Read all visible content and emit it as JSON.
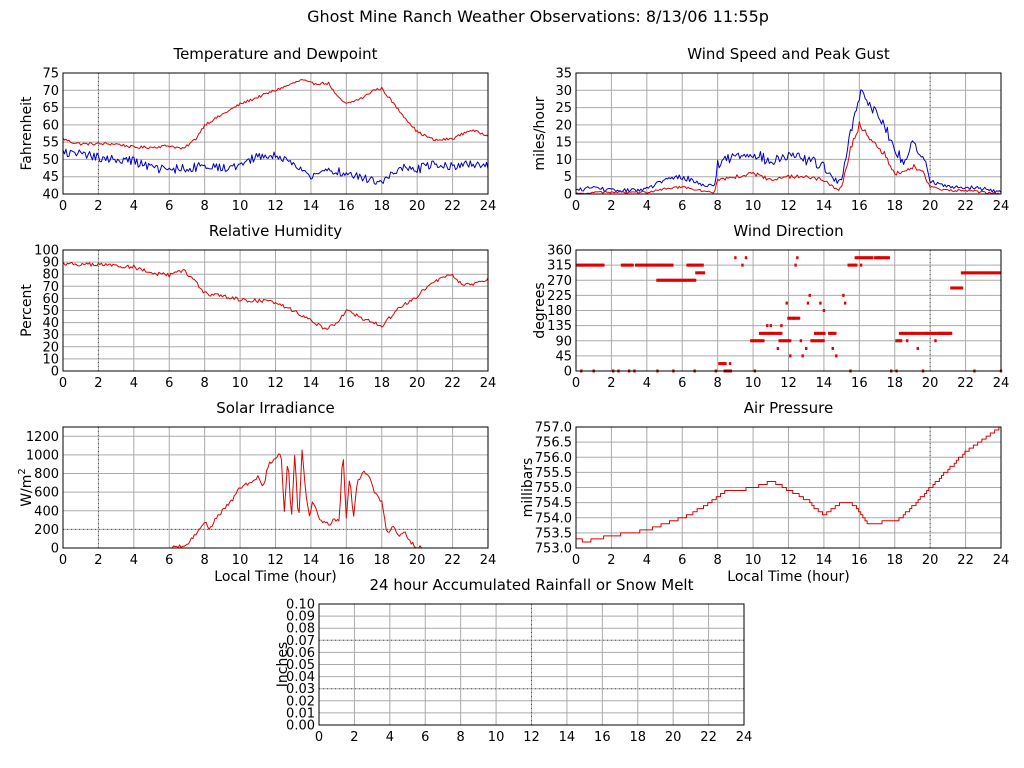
{
  "title": "Ghost Mine Ranch Weather Observations: 8/13/06 11:55p",
  "colors": {
    "primary": "#e00000",
    "secondary": "#0000c8",
    "grid": "#aaaaaa",
    "dotted": "#555555"
  },
  "chart_data": [
    {
      "id": "temperature",
      "type": "line",
      "title": "Temperature and Dewpoint",
      "xlabel": "",
      "ylabel": "Fahrenheit",
      "xlim": [
        0,
        24
      ],
      "ylim": [
        40,
        75
      ],
      "xticks": [
        "0",
        "2",
        "4",
        "6",
        "8",
        "10",
        "12",
        "14",
        "16",
        "18",
        "20",
        "22",
        "24"
      ],
      "yticks": [
        "40",
        "45",
        "50",
        "55",
        "60",
        "65",
        "70",
        "75"
      ],
      "grid": true,
      "noise": [
        0.4,
        1.3
      ],
      "series": [
        {
          "color": "#e00000",
          "x": [
            0,
            0.5,
            1,
            2,
            3,
            4,
            5,
            6,
            6.8,
            7.5,
            8,
            9,
            10,
            11,
            12,
            13,
            13.5,
            14,
            15,
            15.5,
            16,
            17,
            17.5,
            18,
            19,
            20,
            21,
            22,
            23,
            24
          ],
          "y": [
            56,
            55,
            54.5,
            54.5,
            54.5,
            53.5,
            53.5,
            54,
            53,
            56,
            60,
            63,
            66,
            68,
            70,
            72,
            73,
            72,
            72,
            68,
            66,
            68,
            70,
            70.5,
            64,
            58,
            55.5,
            56,
            58.5,
            57
          ]
        },
        {
          "color": "#0000c8",
          "x": [
            0,
            1,
            2,
            3,
            4,
            5,
            6,
            7,
            8,
            9,
            10,
            11,
            12,
            13,
            14,
            15,
            16,
            17,
            18,
            19,
            20,
            21,
            22,
            23,
            24
          ],
          "y": [
            52,
            51.5,
            50.5,
            50,
            49.5,
            47.5,
            47,
            47.5,
            48,
            47.5,
            48.5,
            51,
            51,
            49,
            45,
            47,
            46,
            44.5,
            43,
            48,
            47,
            49,
            48,
            49,
            48.5
          ]
        }
      ]
    },
    {
      "id": "wind_speed",
      "type": "line",
      "title": "Wind Speed and Peak Gust",
      "xlabel": "",
      "ylabel": "miles/hour",
      "xlim": [
        0,
        24
      ],
      "ylim": [
        0,
        35
      ],
      "xticks": [
        "0",
        "2",
        "4",
        "6",
        "8",
        "10",
        "12",
        "14",
        "16",
        "18",
        "20",
        "22",
        "24"
      ],
      "yticks": [
        "0",
        "5",
        "10",
        "15",
        "20",
        "25",
        "30",
        "35"
      ],
      "grid": true,
      "noise": [
        1.6,
        0.9
      ],
      "series": [
        {
          "color": "#0000c8",
          "x": [
            0,
            1,
            2,
            3,
            4,
            5,
            6,
            7,
            7.8,
            8,
            9,
            10,
            11,
            12,
            13,
            14,
            14.8,
            15,
            15.5,
            16,
            16.2,
            16.5,
            17,
            17.5,
            18,
            18.5,
            19,
            19.5,
            20,
            21,
            22,
            23,
            24
          ],
          "y": [
            1,
            2,
            1,
            1,
            1.5,
            4,
            5,
            3,
            2,
            9,
            11,
            12,
            9,
            11,
            10,
            8,
            3,
            5,
            18,
            28,
            31,
            26,
            24,
            19,
            12,
            10,
            14,
            12,
            4,
            2,
            2,
            1.5,
            0.5
          ]
        },
        {
          "color": "#e00000",
          "x": [
            0,
            1,
            2,
            3,
            4,
            5,
            6,
            7,
            7.8,
            8,
            9,
            10,
            11,
            12,
            13,
            14,
            14.8,
            15,
            15.5,
            16,
            16.5,
            17,
            17.5,
            18,
            18.5,
            19,
            19.5,
            20,
            21,
            22,
            23,
            24
          ],
          "y": [
            0,
            0.5,
            0.5,
            0.5,
            0.5,
            1.5,
            2,
            1,
            0.5,
            4,
            5,
            6,
            4,
            5,
            5,
            4,
            1,
            2,
            13,
            20,
            17,
            14,
            11,
            6,
            6,
            8,
            7,
            2,
            1,
            1,
            0.5,
            0
          ]
        }
      ]
    },
    {
      "id": "humidity",
      "type": "line",
      "title": "Relative Humidity",
      "xlabel": "",
      "ylabel": "Percent",
      "xlim": [
        0,
        24
      ],
      "ylim": [
        0,
        100
      ],
      "xticks": [
        "0",
        "2",
        "4",
        "6",
        "8",
        "10",
        "12",
        "14",
        "16",
        "18",
        "20",
        "22",
        "24"
      ],
      "yticks": [
        "0",
        "10",
        "20",
        "30",
        "40",
        "50",
        "60",
        "70",
        "80",
        "90",
        "100"
      ],
      "grid": true,
      "noise": [
        1.6
      ],
      "series": [
        {
          "color": "#e00000",
          "x": [
            0,
            1,
            2,
            3,
            4,
            5,
            6,
            6.8,
            7.5,
            8,
            9,
            10,
            11,
            12,
            13,
            14,
            14.8,
            15.5,
            16,
            17,
            18,
            19,
            20,
            21,
            22,
            22.5,
            23,
            24
          ],
          "y": [
            89,
            88,
            88,
            87,
            86,
            81,
            79,
            83,
            74,
            64,
            62,
            59,
            58,
            57,
            50,
            42,
            35,
            40,
            50,
            43,
            37,
            52,
            62,
            74,
            80,
            72,
            71,
            76
          ]
        }
      ]
    },
    {
      "id": "wind_direction",
      "type": "scatter",
      "title": "Wind Direction",
      "xlabel": "",
      "ylabel": "degrees",
      "xlim": [
        0,
        24
      ],
      "ylim": [
        0,
        360
      ],
      "xticks": [
        "0",
        "2",
        "4",
        "6",
        "8",
        "10",
        "12",
        "14",
        "16",
        "18",
        "20",
        "22",
        "24"
      ],
      "yticks": [
        "0",
        "45",
        "90",
        "135",
        "180",
        "225",
        "270",
        "315",
        "360"
      ],
      "grid": true,
      "series": [
        {
          "color": "#e00000",
          "segments": [
            [
              0.1,
              1.6,
              315
            ],
            [
              2.6,
              3.2,
              315
            ],
            [
              3.4,
              5.5,
              315
            ],
            [
              4.6,
              6.8,
              270
            ],
            [
              6.3,
              7.2,
              315
            ],
            [
              6.8,
              7.3,
              292
            ],
            [
              8.1,
              8.5,
              22
            ],
            [
              8.4,
              8.8,
              0
            ],
            [
              9.9,
              10.6,
              90
            ],
            [
              10.4,
              11.6,
              112
            ],
            [
              11.5,
              12.1,
              90
            ],
            [
              12.0,
              12.6,
              157
            ],
            [
              13.3,
              14.0,
              90
            ],
            [
              13.6,
              14.1,
              112
            ],
            [
              14.3,
              14.7,
              112
            ],
            [
              15.4,
              15.9,
              315
            ],
            [
              15.8,
              16.8,
              337
            ],
            [
              16.9,
              17.7,
              337
            ],
            [
              18.3,
              19.0,
              112
            ],
            [
              19.0,
              21.2,
              112
            ],
            [
              20.5,
              21.2,
              112
            ],
            [
              21.2,
              21.8,
              247
            ],
            [
              21.8,
              24.0,
              292
            ],
            [
              18.1,
              18.4,
              90
            ]
          ],
          "points": [
            [
              0.3,
              0
            ],
            [
              1.0,
              0
            ],
            [
              2.1,
              0
            ],
            [
              2.4,
              0
            ],
            [
              3.0,
              0
            ],
            [
              3.3,
              0
            ],
            [
              4.6,
              0
            ],
            [
              5.5,
              0
            ],
            [
              6.7,
              0
            ],
            [
              7.9,
              0
            ],
            [
              8.7,
              22
            ],
            [
              9.0,
              337
            ],
            [
              9.4,
              315
            ],
            [
              9.6,
              337
            ],
            [
              10.1,
              0
            ],
            [
              10.8,
              135
            ],
            [
              11.0,
              135
            ],
            [
              11.4,
              67
            ],
            [
              11.6,
              135
            ],
            [
              11.9,
              202
            ],
            [
              12.1,
              45
            ],
            [
              12.3,
              157
            ],
            [
              12.4,
              315
            ],
            [
              12.5,
              337
            ],
            [
              12.7,
              90
            ],
            [
              12.8,
              45
            ],
            [
              13.0,
              67
            ],
            [
              13.1,
              202
            ],
            [
              13.2,
              225
            ],
            [
              13.5,
              112
            ],
            [
              13.8,
              202
            ],
            [
              14.0,
              180
            ],
            [
              14.5,
              67
            ],
            [
              14.7,
              45
            ],
            [
              15.1,
              225
            ],
            [
              15.2,
              202
            ],
            [
              15.5,
              0
            ],
            [
              16.1,
              315
            ],
            [
              17.1,
              337
            ],
            [
              17.8,
              0
            ],
            [
              18.1,
              0
            ],
            [
              18.7,
              90
            ],
            [
              19.3,
              67
            ],
            [
              19.6,
              0
            ],
            [
              19.8,
              112
            ],
            [
              20.3,
              90
            ],
            [
              22.5,
              0
            ],
            [
              24.0,
              0
            ]
          ]
        }
      ]
    },
    {
      "id": "solar",
      "type": "line",
      "title": "Solar Irradiance",
      "xlabel": "Local Time (hour)",
      "ylabel": "W/m",
      "ylabel_sup": "2",
      "xlim": [
        0,
        24
      ],
      "ylim": [
        0,
        1300
      ],
      "xticks": [
        "0",
        "2",
        "4",
        "6",
        "8",
        "10",
        "12",
        "14",
        "16",
        "18",
        "20",
        "22",
        "24"
      ],
      "yticks": [
        "0",
        "200",
        "400",
        "600",
        "800",
        "1000",
        "1200"
      ],
      "grid": true,
      "noise": [
        20
      ],
      "series": [
        {
          "color": "#e00000",
          "x": [
            0,
            6,
            6.5,
            7,
            7.3,
            7.6,
            8,
            8.3,
            8.6,
            9,
            9.5,
            10,
            10.5,
            11,
            11.3,
            11.6,
            12,
            12.3,
            12.5,
            12.7,
            12.9,
            13.1,
            13.3,
            13.5,
            13.7,
            13.9,
            14.1,
            14.5,
            15,
            15.3,
            15.6,
            15.8,
            16,
            16.2,
            16.4,
            16.6,
            17,
            17.3,
            17.6,
            18,
            18.3,
            18.6,
            19,
            19.3,
            19.6,
            20,
            20.5,
            24
          ],
          "y": [
            0,
            0,
            10,
            40,
            110,
            180,
            280,
            200,
            310,
            400,
            500,
            650,
            700,
            760,
            640,
            900,
            960,
            1040,
            400,
            980,
            300,
            1050,
            230,
            1050,
            600,
            330,
            500,
            300,
            250,
            300,
            280,
            1060,
            320,
            780,
            300,
            700,
            820,
            770,
            600,
            500,
            150,
            230,
            140,
            190,
            60,
            10,
            0,
            0
          ]
        }
      ]
    },
    {
      "id": "pressure",
      "type": "line",
      "title": "Air Pressure",
      "xlabel": "Local Time (hour)",
      "ylabel": "millibars",
      "xlim": [
        0,
        24
      ],
      "ylim": [
        753.0,
        757.0
      ],
      "xticks": [
        "0",
        "2",
        "4",
        "6",
        "8",
        "10",
        "12",
        "14",
        "16",
        "18",
        "20",
        "22",
        "24"
      ],
      "yticks": [
        "753.0",
        "753.5",
        "754.0",
        "754.5",
        "755.0",
        "755.5",
        "756.0",
        "756.5",
        "757.0"
      ],
      "grid": true,
      "step": true,
      "series": [
        {
          "color": "#e00000",
          "x": [
            0,
            0.5,
            1,
            2,
            3,
            4,
            5,
            6,
            7,
            8,
            8.5,
            9,
            10,
            11,
            11.5,
            12,
            13,
            13.5,
            14,
            14.5,
            15,
            15.5,
            16,
            16.5,
            17,
            17.5,
            18,
            18.5,
            19,
            20,
            21,
            22,
            22.5,
            23,
            24
          ],
          "y": [
            753.3,
            753.2,
            753.3,
            753.4,
            753.5,
            753.6,
            753.8,
            754.0,
            754.3,
            754.7,
            754.9,
            754.9,
            755.0,
            755.2,
            755.1,
            754.9,
            754.6,
            754.3,
            754.1,
            754.3,
            754.5,
            754.5,
            754.2,
            753.8,
            753.8,
            753.9,
            753.9,
            754.1,
            754.4,
            755.0,
            755.6,
            756.2,
            756.4,
            756.6,
            757.0
          ]
        }
      ]
    },
    {
      "id": "rainfall",
      "type": "line",
      "title": "24 hour Accumulated Rainfall or Snow Melt",
      "xlabel": "",
      "ylabel": "Inches",
      "xlim": [
        0,
        24
      ],
      "ylim": [
        0,
        0.1
      ],
      "xticks": [
        "0",
        "2",
        "4",
        "6",
        "8",
        "10",
        "12",
        "14",
        "16",
        "18",
        "20",
        "22",
        "24"
      ],
      "yticks": [
        "0.00",
        "0.01",
        "0.02",
        "0.03",
        "0.04",
        "0.05",
        "0.06",
        "0.07",
        "0.08",
        "0.09",
        "0.10"
      ],
      "grid": true,
      "series": [
        {
          "color": "#e00000",
          "x": [
            0,
            24
          ],
          "y": [
            0,
            0
          ]
        }
      ]
    }
  ]
}
